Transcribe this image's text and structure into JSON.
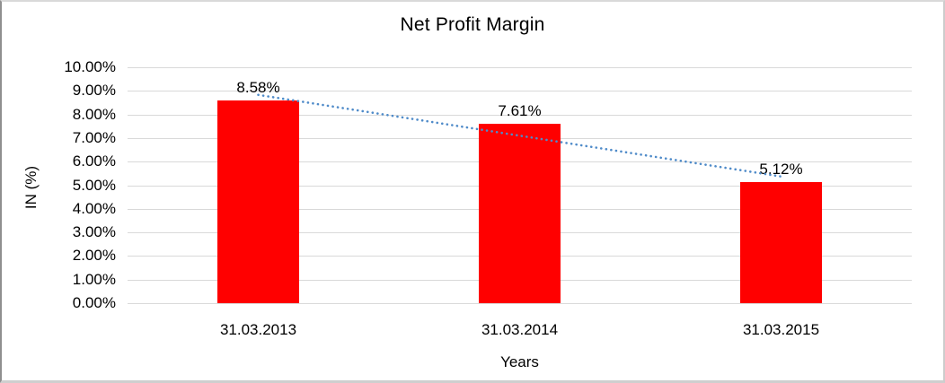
{
  "chart_data": {
    "type": "bar",
    "title": "Net Profit Margin",
    "categories": [
      "31.03.2013",
      "31.03.2014",
      "31.03.2015"
    ],
    "values": [
      8.58,
      7.61,
      5.12
    ],
    "data_labels": [
      "8.58%",
      "7.61%",
      "5.12%"
    ],
    "xlabel": "Years",
    "ylabel": "IN (%)",
    "ylim": [
      0,
      10
    ],
    "ytick_labels": [
      "10.00%",
      "9.00%",
      "8.00%",
      "7.00%",
      "6.00%",
      "5.00%",
      "4.00%",
      "3.00%",
      "2.00%",
      "1.00%",
      "0.00%"
    ],
    "grid": true,
    "legend": false,
    "bar_color": "#ff0000",
    "gridline_color": "#d9d9d9",
    "text_color": "#000000",
    "trendline": {
      "type": "linear",
      "style": "dotted",
      "color": "#4f8bc9",
      "endpoint_values": [
        8.83,
        5.37
      ]
    }
  }
}
